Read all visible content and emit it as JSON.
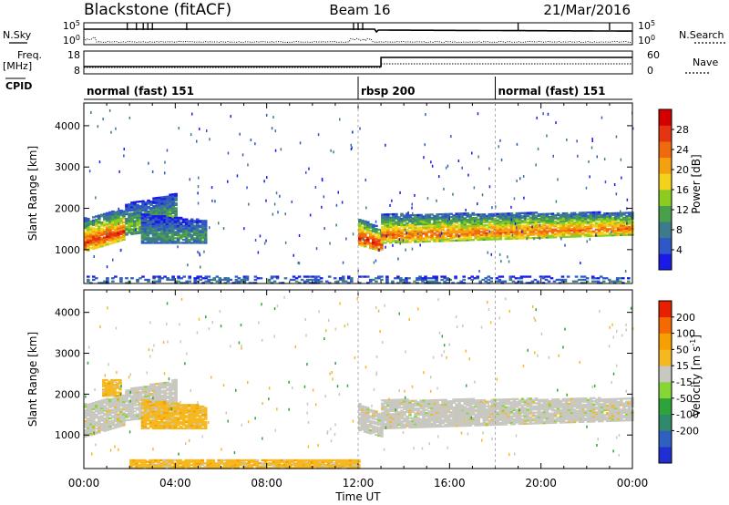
{
  "header": {
    "station": "Blackstone (fitACF)",
    "beam": "Beam 16",
    "date": "21/Mar/2016"
  },
  "panels": {
    "nsky_label": "N.Sky",
    "nsky_top_tick": "10^5",
    "nsky_bottom_tick": "10^0",
    "nsearch_label": "N.Search",
    "nsearch_top_tick": "10^5",
    "nsearch_bottom_tick": "10^0",
    "freq_label_line1": "Freq.",
    "freq_label_line2": "[MHz]",
    "freq_top_tick": "18",
    "freq_bottom_tick": "8",
    "nave_label": "Nave",
    "nave_top_tick": "60",
    "nave_bottom_tick": "0",
    "cpid_label": "CPID",
    "cpid_segments": [
      {
        "label": "normal (fast) 151",
        "start": 0,
        "end": 12
      },
      {
        "label": "rbsp 200",
        "start": 12,
        "end": 18
      },
      {
        "label": "normal (fast) 151",
        "start": 18,
        "end": 24
      }
    ]
  },
  "chart_data": [
    {
      "type": "heatmap",
      "title": "",
      "xlabel": "Time UT",
      "ylabel": "Slant Range [km]",
      "x_ticks": [
        "00:00",
        "04:00",
        "08:00",
        "12:00",
        "16:00",
        "20:00",
        "00:00"
      ],
      "y_ticks": [
        1000,
        2000,
        3000,
        4000
      ],
      "xlim_hours": [
        0,
        24
      ],
      "ylim": [
        180,
        4550
      ],
      "colorbar": {
        "label": "Power [dB]",
        "ticks": [
          "4",
          "8",
          "12",
          "16",
          "20",
          "24",
          "28"
        ],
        "colors": [
          "#1a1ae6",
          "#2f57c8",
          "#3c7a8c",
          "#4aa04a",
          "#8ccc20",
          "#f2d21a",
          "#f5a10f",
          "#ef6a0c",
          "#e63312",
          "#d40000"
        ]
      },
      "bands": [
        {
          "t0": 0.0,
          "t1": 1.8,
          "r0": 950,
          "r1": 1750,
          "r0end": 1250,
          "r1end": 2000,
          "peak": 0.85
        },
        {
          "t0": 1.8,
          "t1": 4.0,
          "r0": 1350,
          "r1": 2100,
          "r0end": 1500,
          "r1end": 2350,
          "peak": 0.45
        },
        {
          "t0": 2.5,
          "t1": 5.3,
          "r0": 1150,
          "r1": 1850,
          "r0end": 1150,
          "r1end": 1700,
          "peak": 0.32
        },
        {
          "t0": 12.0,
          "t1": 13.0,
          "r0": 1100,
          "r1": 1750,
          "r0end": 950,
          "r1end": 1500,
          "peak": 0.9
        },
        {
          "t0": 13.0,
          "t1": 24.0,
          "r0": 1150,
          "r1": 1850,
          "r0end": 1350,
          "r1end": 1900,
          "peak": 0.75
        },
        {
          "t0": 0.0,
          "t1": 24.0,
          "r0": 180,
          "r1": 360,
          "r0end": 180,
          "r1end": 360,
          "peak": 0.25
        }
      ]
    },
    {
      "type": "heatmap",
      "title": "",
      "xlabel": "Time UT",
      "ylabel": "Slant Range [km]",
      "x_ticks": [
        "00:00",
        "04:00",
        "08:00",
        "12:00",
        "16:00",
        "20:00",
        "00:00"
      ],
      "y_ticks": [
        1000,
        2000,
        3000,
        4000
      ],
      "xlim_hours": [
        0,
        24
      ],
      "ylim": [
        180,
        4550
      ],
      "colorbar": {
        "label": "Velocity [m s^-1]",
        "ticks": [
          "200",
          "100",
          "50",
          "15",
          "-15",
          "-50",
          "-100",
          "-200"
        ],
        "colors": [
          "#1f2fd1",
          "#2f5fbf",
          "#2e8a6a",
          "#2ea33a",
          "#86d636",
          "#c8c8c0",
          "#f5b820",
          "#f5a000",
          "#f56a00",
          "#e82000"
        ]
      },
      "bands": [
        {
          "t0": 0.0,
          "t1": 1.8,
          "r0": 950,
          "r1": 1750,
          "r0end": 1250,
          "r1end": 2000,
          "cls": "grey"
        },
        {
          "t0": 0.8,
          "t1": 1.6,
          "r0": 1950,
          "r1": 2350,
          "r0end": 1950,
          "r1end": 2350,
          "cls": "orange"
        },
        {
          "t0": 1.8,
          "t1": 4.0,
          "r0": 1350,
          "r1": 2100,
          "r0end": 1500,
          "r1end": 2350,
          "cls": "grey"
        },
        {
          "t0": 2.5,
          "t1": 5.3,
          "r0": 1150,
          "r1": 1850,
          "r0end": 1150,
          "r1end": 1700,
          "cls": "orange"
        },
        {
          "t0": 12.0,
          "t1": 13.0,
          "r0": 1100,
          "r1": 1750,
          "r0end": 950,
          "r1end": 1500,
          "cls": "grey"
        },
        {
          "t0": 13.0,
          "t1": 24.0,
          "r0": 1150,
          "r1": 1850,
          "r0end": 1350,
          "r1end": 1900,
          "cls": "grey"
        },
        {
          "t0": 2.0,
          "t1": 12.0,
          "r0": 180,
          "r1": 380,
          "r0end": 180,
          "r1end": 380,
          "cls": "orange"
        }
      ]
    }
  ]
}
